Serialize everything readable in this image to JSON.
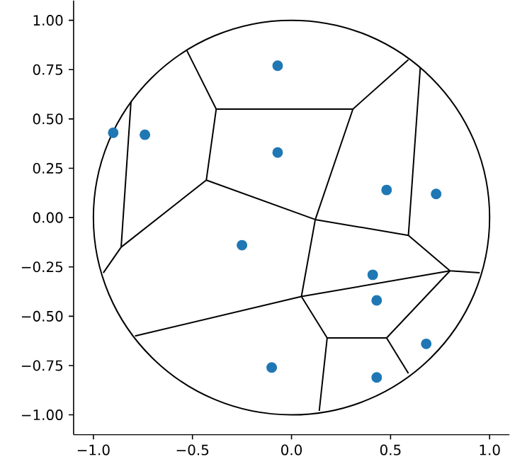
{
  "chart_data": {
    "type": "scatter",
    "marker": "circle",
    "grid": false,
    "xlim": [
      -1.1,
      1.1
    ],
    "ylim": [
      -1.1,
      1.1
    ],
    "xticks": [
      {
        "value": -1.0,
        "label": "−1.0"
      },
      {
        "value": -0.5,
        "label": "−0.5"
      },
      {
        "value": 0.0,
        "label": "0.0"
      },
      {
        "value": 0.5,
        "label": "0.5"
      },
      {
        "value": 1.0,
        "label": "1.0"
      }
    ],
    "yticks": [
      {
        "value": -1.0,
        "label": "−1.00"
      },
      {
        "value": -0.75,
        "label": "−0.75"
      },
      {
        "value": -0.5,
        "label": "−0.50"
      },
      {
        "value": -0.25,
        "label": "−0.25"
      },
      {
        "value": 0.0,
        "label": "0.00"
      },
      {
        "value": 0.25,
        "label": "0.25"
      },
      {
        "value": 0.5,
        "label": "0.50"
      },
      {
        "value": 0.75,
        "label": "0.75"
      },
      {
        "value": 1.0,
        "label": "1.00"
      }
    ],
    "series": [
      {
        "color": "#1f77b4",
        "x": [
          -0.9,
          -0.74,
          -0.07,
          -0.07,
          0.48,
          0.73,
          -0.25,
          0.41,
          0.43,
          0.68,
          -0.1,
          0.43
        ],
        "values": [
          0.43,
          0.42,
          0.77,
          0.33,
          0.14,
          0.12,
          -0.14,
          -0.29,
          -0.42,
          -0.64,
          -0.76,
          -0.81
        ]
      },
      {
        "type": "line",
        "marker": "none",
        "color": "#000000",
        "x": [
          -0.53,
          -0.38,
          0.31,
          0.59
        ],
        "values": [
          0.85,
          0.55,
          0.55,
          0.8
        ]
      },
      {
        "type": "line",
        "marker": "none",
        "color": "#000000",
        "x": [
          -0.95,
          -0.86,
          -0.43,
          0.12,
          0.59,
          0.8,
          0.95
        ],
        "values": [
          -0.28,
          -0.15,
          0.19,
          -0.01,
          -0.09,
          -0.27,
          -0.28
        ]
      },
      {
        "type": "line",
        "marker": "none",
        "color": "#000000",
        "x": [
          -0.38,
          -0.43
        ],
        "values": [
          0.55,
          0.19
        ]
      },
      {
        "type": "line",
        "marker": "none",
        "color": "#000000",
        "x": [
          -0.81,
          -0.86
        ],
        "values": [
          0.59,
          -0.15
        ]
      },
      {
        "type": "line",
        "marker": "none",
        "color": "#000000",
        "x": [
          0.65,
          0.59
        ],
        "values": [
          0.76,
          -0.09
        ]
      },
      {
        "type": "line",
        "marker": "none",
        "color": "#000000",
        "x": [
          0.31,
          0.12,
          0.05
        ],
        "values": [
          0.55,
          -0.01,
          -0.4
        ]
      },
      {
        "type": "line",
        "marker": "none",
        "color": "#000000",
        "x": [
          -0.79,
          0.05,
          0.8
        ],
        "values": [
          -0.6,
          -0.4,
          -0.27
        ]
      },
      {
        "type": "line",
        "marker": "none",
        "color": "#000000",
        "x": [
          0.05,
          0.18,
          0.48,
          0.8
        ],
        "values": [
          -0.4,
          -0.61,
          -0.61,
          -0.27
        ]
      },
      {
        "type": "line",
        "marker": "none",
        "color": "#000000",
        "x": [
          0.48,
          0.59
        ],
        "values": [
          -0.61,
          -0.79
        ]
      },
      {
        "type": "line",
        "marker": "none",
        "color": "#000000",
        "x": [
          0.18,
          0.14
        ],
        "values": [
          -0.61,
          -0.98
        ]
      }
    ]
  }
}
